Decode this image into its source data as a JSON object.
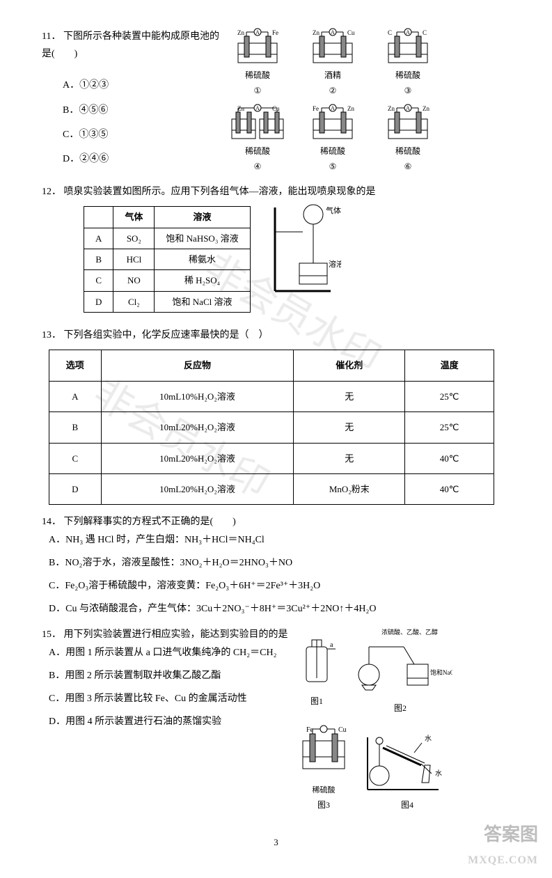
{
  "q11": {
    "num": "11．",
    "stem": "下图所示各种装置中能构成原电池的是(　　)",
    "options": [
      {
        "label": "A．",
        "text": "①②③"
      },
      {
        "label": "B．",
        "text": "④⑤⑥"
      },
      {
        "label": "C．",
        "text": "①③⑤"
      },
      {
        "label": "D．",
        "text": "②④⑥"
      }
    ],
    "devices": [
      {
        "left": "Zn",
        "right": "Fe",
        "liquid": "稀硫酸",
        "num": "①",
        "wire": "single"
      },
      {
        "left": "Zn",
        "right": "Cu",
        "liquid": "酒精",
        "num": "②",
        "wire": "single"
      },
      {
        "left": "C",
        "right": "C",
        "liquid": "稀硫酸",
        "num": "③",
        "wire": "single"
      },
      {
        "left": "Zn",
        "right": "Cu",
        "liquid": "稀硫酸",
        "num": "④",
        "wire": "double"
      },
      {
        "left": "Fe",
        "right": "Zn",
        "liquid": "稀硫酸",
        "num": "⑤",
        "wire": "single"
      },
      {
        "left": "Zn",
        "right": "Zn",
        "liquid": "稀硫酸",
        "num": "⑥",
        "wire": "single"
      }
    ]
  },
  "q12": {
    "num": "12．",
    "stem": "喷泉实验装置如图所示。应用下列各组气体—溶液，能出现喷泉现象的是",
    "headers": [
      "",
      "气体",
      "溶液"
    ],
    "rows": [
      [
        "A",
        "SO₂",
        "饱和 NaHSO₃ 溶液"
      ],
      [
        "B",
        "HCl",
        "稀氨水"
      ],
      [
        "C",
        "NO",
        "稀 H₂SO₄"
      ],
      [
        "D",
        "Cl₂",
        "饱和 NaCl 溶液"
      ]
    ],
    "fig_labels": {
      "gas": "气体",
      "liquid": "溶液"
    }
  },
  "q13": {
    "num": "13．",
    "stem": "下列各组实验中，化学反应速率最快的是（　）",
    "headers": [
      "选项",
      "反应物",
      "催化剂",
      "温度"
    ],
    "rows": [
      [
        "A",
        "10mL10%H₂O₂溶液",
        "无",
        "25℃"
      ],
      [
        "B",
        "10mL20%H₂O₂溶液",
        "无",
        "25℃"
      ],
      [
        "C",
        "10mL20%H₂O₂溶液",
        "无",
        "40℃"
      ],
      [
        "D",
        "10mL20%H₂O₂溶液",
        "MnO₂粉末",
        "40℃"
      ]
    ]
  },
  "q14": {
    "num": "14．",
    "stem": "下列解释事实的方程式不正确的是(　　)",
    "options": [
      "A．NH₃ 遇 HCl 时，产生白烟：NH₃＋HCl＝NH₄Cl",
      "B．NO₂溶于水，溶液呈酸性：3NO₂＋H₂O＝2HNO₃＋NO",
      "C．Fe₂O₃溶于稀硫酸中，溶液变黄：Fe₂O₃＋6H⁺＝2Fe³⁺＋3H₂O",
      "D．Cu 与浓硝酸混合，产生气体：3Cu＋2NO₃⁻＋8H⁺＝3Cu²⁺＋2NO↑＋4H₂O"
    ]
  },
  "q15": {
    "num": "15．",
    "stem": "用下列实验装置进行相应实验，能达到实验目的的是",
    "options": [
      "A．用图 1 所示装置从 a 口进气收集纯净的 CH₂＝CH₂",
      "B．用图 2 所示装置制取并收集乙酸乙酯",
      "C．用图 3 所示装置比较 Fe、Cu 的金属活动性",
      "D．用图 4 所示装置进行石油的蒸馏实验"
    ],
    "figs": {
      "f1": "图1",
      "f2": "图2",
      "f3": "图3",
      "f4": "图4",
      "f1_a": "a",
      "f2_top": "浓硫酸、乙酸、乙醇",
      "f2_bot": "饱和NaOH溶液",
      "f3_l": "Fe",
      "f3_r": "Cu",
      "f3_liq": "稀硫酸",
      "f4_w1": "水",
      "f4_w2": "水"
    }
  },
  "page_number": "3",
  "watermarks": {
    "wm1": "非会员水印",
    "logo1": "答案图",
    "logo2": "MXQE.COM"
  }
}
